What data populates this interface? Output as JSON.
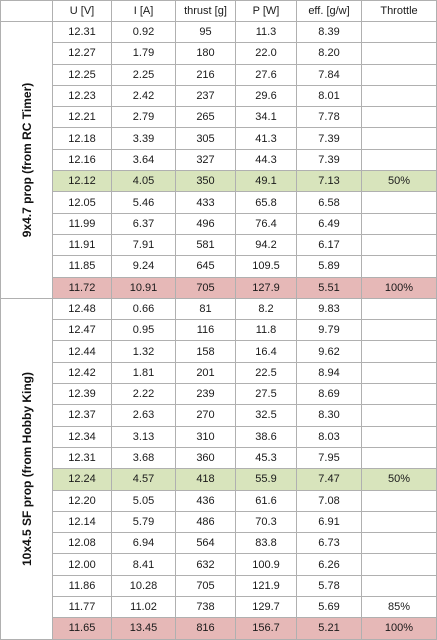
{
  "colors": {
    "green_highlight": "#d8e4bc",
    "red_highlight": "#e6b8b7",
    "grid": "#b0b0b0"
  },
  "table": {
    "columns": [
      "U [V]",
      "I [A]",
      "thrust [g]",
      "P [W]",
      "eff. [g/w]",
      "Throttle"
    ],
    "groups": [
      {
        "label": "9x4.7 prop (from RC Timer)",
        "rows": [
          {
            "cells": [
              "12.31",
              "0.92",
              "95",
              "11.3",
              "8.39",
              ""
            ],
            "hl": ""
          },
          {
            "cells": [
              "12.27",
              "1.79",
              "180",
              "22.0",
              "8.20",
              ""
            ],
            "hl": ""
          },
          {
            "cells": [
              "12.25",
              "2.25",
              "216",
              "27.6",
              "7.84",
              ""
            ],
            "hl": ""
          },
          {
            "cells": [
              "12.23",
              "2.42",
              "237",
              "29.6",
              "8.01",
              ""
            ],
            "hl": ""
          },
          {
            "cells": [
              "12.21",
              "2.79",
              "265",
              "34.1",
              "7.78",
              ""
            ],
            "hl": ""
          },
          {
            "cells": [
              "12.18",
              "3.39",
              "305",
              "41.3",
              "7.39",
              ""
            ],
            "hl": ""
          },
          {
            "cells": [
              "12.16",
              "3.64",
              "327",
              "44.3",
              "7.39",
              ""
            ],
            "hl": ""
          },
          {
            "cells": [
              "12.12",
              "4.05",
              "350",
              "49.1",
              "7.13",
              "50%"
            ],
            "hl": "green"
          },
          {
            "cells": [
              "12.05",
              "5.46",
              "433",
              "65.8",
              "6.58",
              ""
            ],
            "hl": ""
          },
          {
            "cells": [
              "11.99",
              "6.37",
              "496",
              "76.4",
              "6.49",
              ""
            ],
            "hl": ""
          },
          {
            "cells": [
              "11.91",
              "7.91",
              "581",
              "94.2",
              "6.17",
              ""
            ],
            "hl": ""
          },
          {
            "cells": [
              "11.85",
              "9.24",
              "645",
              "109.5",
              "5.89",
              ""
            ],
            "hl": ""
          },
          {
            "cells": [
              "11.72",
              "10.91",
              "705",
              "127.9",
              "5.51",
              "100%"
            ],
            "hl": "red"
          }
        ]
      },
      {
        "label": "10x4.5 SF prop (from Hobby King)",
        "rows": [
          {
            "cells": [
              "12.48",
              "0.66",
              "81",
              "8.2",
              "9.83",
              ""
            ],
            "hl": ""
          },
          {
            "cells": [
              "12.47",
              "0.95",
              "116",
              "11.8",
              "9.79",
              ""
            ],
            "hl": ""
          },
          {
            "cells": [
              "12.44",
              "1.32",
              "158",
              "16.4",
              "9.62",
              ""
            ],
            "hl": ""
          },
          {
            "cells": [
              "12.42",
              "1.81",
              "201",
              "22.5",
              "8.94",
              ""
            ],
            "hl": ""
          },
          {
            "cells": [
              "12.39",
              "2.22",
              "239",
              "27.5",
              "8.69",
              ""
            ],
            "hl": ""
          },
          {
            "cells": [
              "12.37",
              "2.63",
              "270",
              "32.5",
              "8.30",
              ""
            ],
            "hl": ""
          },
          {
            "cells": [
              "12.34",
              "3.13",
              "310",
              "38.6",
              "8.03",
              ""
            ],
            "hl": ""
          },
          {
            "cells": [
              "12.31",
              "3.68",
              "360",
              "45.3",
              "7.95",
              ""
            ],
            "hl": ""
          },
          {
            "cells": [
              "12.24",
              "4.57",
              "418",
              "55.9",
              "7.47",
              "50%"
            ],
            "hl": "green"
          },
          {
            "cells": [
              "12.20",
              "5.05",
              "436",
              "61.6",
              "7.08",
              ""
            ],
            "hl": ""
          },
          {
            "cells": [
              "12.14",
              "5.79",
              "486",
              "70.3",
              "6.91",
              ""
            ],
            "hl": ""
          },
          {
            "cells": [
              "12.08",
              "6.94",
              "564",
              "83.8",
              "6.73",
              ""
            ],
            "hl": ""
          },
          {
            "cells": [
              "12.00",
              "8.41",
              "632",
              "100.9",
              "6.26",
              ""
            ],
            "hl": ""
          },
          {
            "cells": [
              "11.86",
              "10.28",
              "705",
              "121.9",
              "5.78",
              ""
            ],
            "hl": ""
          },
          {
            "cells": [
              "11.77",
              "11.02",
              "738",
              "129.7",
              "5.69",
              "85%"
            ],
            "hl": ""
          },
          {
            "cells": [
              "11.65",
              "13.45",
              "816",
              "156.7",
              "5.21",
              "100%"
            ],
            "hl": "red"
          }
        ]
      }
    ]
  }
}
